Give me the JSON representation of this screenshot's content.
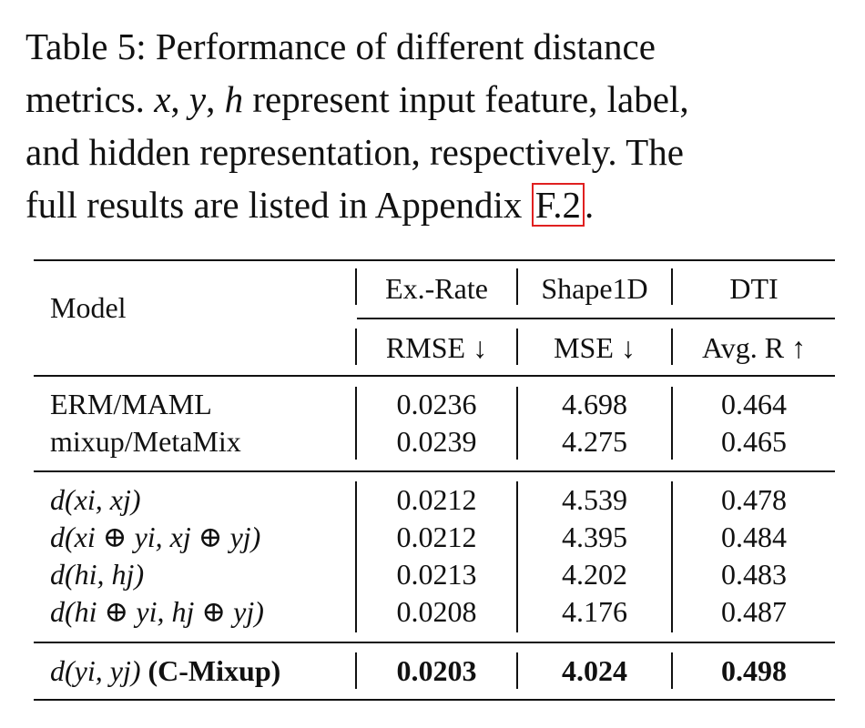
{
  "caption": {
    "line1": "Table 5: Performance of different distance",
    "line2_pre": "metrics.",
    "line2_x": "x",
    "line2_sep1": ",",
    "line2_y": "y",
    "line2_sep2": ",",
    "line2_h": "h",
    "line2_post": "represent input feature, label,",
    "line3": "and hidden representation, respectively. The",
    "line4_pre": "full results are listed in Appendix",
    "line4_ref": "F.2",
    "line4_post": "."
  },
  "table": {
    "model_header": "Model",
    "groups": [
      "Ex.-Rate",
      "Shape1D",
      "DTI"
    ],
    "metrics": [
      "RMSE ↓",
      "MSE ↓",
      "Avg. R ↑"
    ],
    "block1": [
      {
        "model": "ERM/MAML",
        "v1": "0.0236",
        "v2": "4.698",
        "v3": "0.464"
      },
      {
        "model": "mixup/MetaMix",
        "v1": "0.0239",
        "v2": "4.275",
        "v3": "0.465"
      }
    ],
    "block2": [
      {
        "model": "d(xi, xj)",
        "v1": "0.0212",
        "v2": "4.539",
        "v3": "0.478"
      },
      {
        "model": "d(xi ⊕ yi, xj ⊕ yj)",
        "v1": "0.0212",
        "v2": "4.395",
        "v3": "0.484"
      },
      {
        "model": "d(hi, hj)",
        "v1": "0.0213",
        "v2": "4.202",
        "v3": "0.483"
      },
      {
        "model": "d(hi ⊕ yi, hj ⊕ yj)",
        "v1": "0.0208",
        "v2": "4.176",
        "v3": "0.487"
      }
    ],
    "final": {
      "model": "d(yi, yj)",
      "model_suffix": "(C-Mixup)",
      "v1": "0.0203",
      "v2": "4.024",
      "v3": "0.498"
    }
  }
}
